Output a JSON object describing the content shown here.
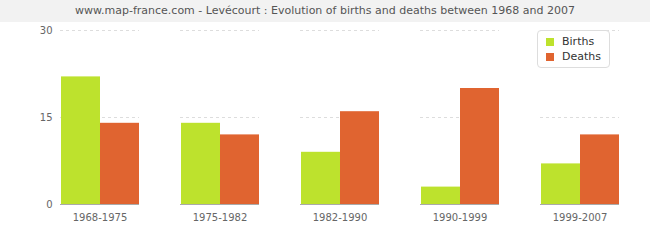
{
  "chart_data": {
    "type": "bar",
    "title": "www.map-france.com - Levécourt : Evolution of births and deaths between 1968 and 2007",
    "categories": [
      "1968-1975",
      "1975-1982",
      "1982-1990",
      "1990-1999",
      "1999-2007"
    ],
    "series": [
      {
        "name": "Births",
        "color": "#bde22d",
        "values": [
          22,
          14,
          9,
          3,
          7
        ]
      },
      {
        "name": "Deaths",
        "color": "#e06430",
        "values": [
          14,
          12,
          16,
          20,
          12
        ]
      }
    ],
    "ylim": [
      0,
      30
    ],
    "yticks": [
      0,
      15,
      30
    ],
    "grid": true,
    "legend": "top right"
  }
}
